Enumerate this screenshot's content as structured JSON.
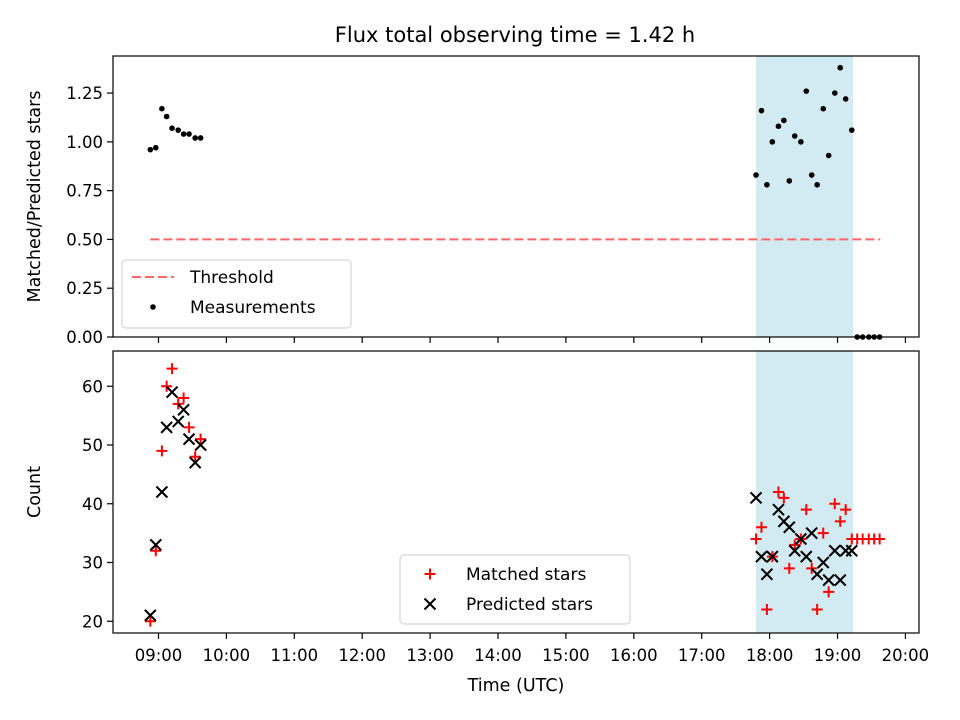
{
  "figure": {
    "title": "Flux total observing time = 1.42 h"
  },
  "chart_data": [
    {
      "type": "scatter",
      "ylabel": "Matched/Predicted stars",
      "ylim": [
        0,
        1.44
      ],
      "yticks": [
        0.0,
        0.25,
        0.5,
        0.75,
        1.0,
        1.25
      ],
      "ytick_labels": [
        "0.00",
        "0.25",
        "0.50",
        "0.75",
        "1.00",
        "1.25"
      ],
      "xlim_hours": [
        8.33,
        20.2
      ],
      "shaded_region_hours": [
        17.8,
        19.23
      ],
      "shade_color": "#add8e6",
      "threshold": {
        "name": "Threshold",
        "y": 0.5,
        "x_range_hours": [
          8.88,
          19.63
        ],
        "color": "#ff6666"
      },
      "series": [
        {
          "name": "Measurements",
          "marker": "dot",
          "color": "#000000",
          "x_hours": [
            8.88,
            8.96,
            9.05,
            9.12,
            9.2,
            9.29,
            9.37,
            9.45,
            9.54,
            9.62,
            17.8,
            17.88,
            17.96,
            18.04,
            18.13,
            18.21,
            18.29,
            18.37,
            18.46,
            18.54,
            18.62,
            18.7,
            18.79,
            18.87,
            18.96,
            19.04,
            19.12,
            19.21,
            19.29,
            19.37,
            19.46,
            19.54,
            19.62
          ],
          "y": [
            0.96,
            0.97,
            1.17,
            1.13,
            1.07,
            1.06,
            1.04,
            1.04,
            1.02,
            1.02,
            0.83,
            1.16,
            0.78,
            1.0,
            1.08,
            1.11,
            0.8,
            1.03,
            1.0,
            1.26,
            0.83,
            0.78,
            1.17,
            0.93,
            1.25,
            1.38,
            1.22,
            1.06,
            0.0,
            0.0,
            0.0,
            0.0,
            0.0
          ]
        }
      ],
      "legend": {
        "placement": "lower-left",
        "entries": [
          "Threshold",
          "Measurements"
        ]
      }
    },
    {
      "type": "scatter",
      "xlabel": "Time (UTC)",
      "ylabel": "Count",
      "ylim": [
        18,
        66
      ],
      "yticks": [
        20,
        30,
        40,
        50,
        60
      ],
      "ytick_labels": [
        "20",
        "30",
        "40",
        "50",
        "60"
      ],
      "xlim_hours": [
        8.33,
        20.2
      ],
      "xticks_hours": [
        9,
        10,
        11,
        12,
        13,
        14,
        15,
        16,
        17,
        18,
        19,
        20
      ],
      "xtick_labels": [
        "09:00",
        "10:00",
        "11:00",
        "12:00",
        "13:00",
        "14:00",
        "15:00",
        "16:00",
        "17:00",
        "18:00",
        "19:00",
        "20:00"
      ],
      "shaded_region_hours": [
        17.8,
        19.23
      ],
      "shade_color": "#add8e6",
      "series": [
        {
          "name": "Matched stars",
          "marker": "plus",
          "color": "#ff0000",
          "x_hours": [
            8.88,
            8.96,
            9.05,
            9.12,
            9.2,
            9.29,
            9.37,
            9.45,
            9.54,
            9.62,
            17.8,
            17.88,
            17.96,
            18.04,
            18.13,
            18.21,
            18.29,
            18.37,
            18.46,
            18.54,
            18.62,
            18.7,
            18.79,
            18.87,
            18.96,
            19.04,
            19.12,
            19.21,
            19.29,
            19.37,
            19.46,
            19.54,
            19.62
          ],
          "y": [
            20,
            32,
            49,
            60,
            63,
            57,
            58,
            53,
            48,
            51,
            34,
            36,
            22,
            31,
            42,
            41,
            29,
            33,
            34,
            39,
            29,
            22,
            35,
            25,
            40,
            37,
            39,
            34,
            34,
            34,
            34,
            34,
            34
          ]
        },
        {
          "name": "Predicted stars",
          "marker": "x",
          "color": "#000000",
          "x_hours": [
            8.88,
            8.96,
            9.05,
            9.12,
            9.2,
            9.29,
            9.37,
            9.45,
            9.54,
            9.62,
            17.8,
            17.88,
            17.96,
            18.04,
            18.13,
            18.21,
            18.29,
            18.37,
            18.46,
            18.54,
            18.62,
            18.7,
            18.79,
            18.87,
            18.96,
            19.04,
            19.12,
            19.21
          ],
          "y": [
            21,
            33,
            42,
            53,
            59,
            54,
            56,
            51,
            47,
            50,
            41,
            31,
            28,
            31,
            39,
            37,
            36,
            32,
            34,
            31,
            35,
            28,
            30,
            27,
            32,
            27,
            32,
            32
          ]
        }
      ],
      "legend": {
        "placement": "lower-center",
        "entries": [
          "Matched stars",
          "Predicted stars"
        ]
      }
    }
  ]
}
